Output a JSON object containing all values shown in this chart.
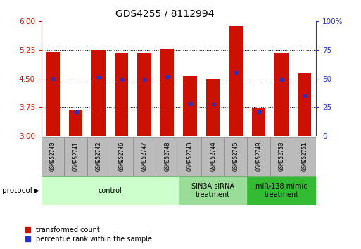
{
  "title": "GDS4255 / 8112994",
  "samples": [
    "GSM952740",
    "GSM952741",
    "GSM952742",
    "GSM952746",
    "GSM952747",
    "GSM952748",
    "GSM952743",
    "GSM952744",
    "GSM952745",
    "GSM952749",
    "GSM952750",
    "GSM952751"
  ],
  "transformed_count": [
    5.2,
    3.68,
    5.24,
    5.18,
    5.17,
    5.28,
    4.57,
    4.49,
    5.88,
    3.71,
    5.17,
    4.63
  ],
  "percentile_rank": [
    4.5,
    3.62,
    4.52,
    4.47,
    4.47,
    4.55,
    3.85,
    3.82,
    4.65,
    3.62,
    4.48,
    4.05
  ],
  "ylim_left": [
    3,
    6
  ],
  "ylim_right": [
    0,
    100
  ],
  "yticks_left": [
    3,
    3.75,
    4.5,
    5.25,
    6
  ],
  "yticks_right": [
    0,
    25,
    50,
    75,
    100
  ],
  "bar_color": "#cc1100",
  "dot_color": "#2233cc",
  "group_colors": [
    "#ccffcc",
    "#99dd99",
    "#33bb33"
  ],
  "group_labels": [
    "control",
    "SIN3A siRNA\ntreatment",
    "miR-138 mimic\ntreatment"
  ],
  "group_starts": [
    0,
    6,
    9
  ],
  "group_ends": [
    6,
    9,
    12
  ],
  "group_edge_color": "#66aa66",
  "sample_box_color": "#bbbbbb",
  "sample_box_edge": "#888888",
  "legend_labels": [
    "transformed count",
    "percentile rank within the sample"
  ],
  "protocol_label": "protocol",
  "title_fontsize": 10,
  "tick_fontsize": 7.5,
  "sample_fontsize": 5.5,
  "group_fontsize": 7,
  "legend_fontsize": 7
}
